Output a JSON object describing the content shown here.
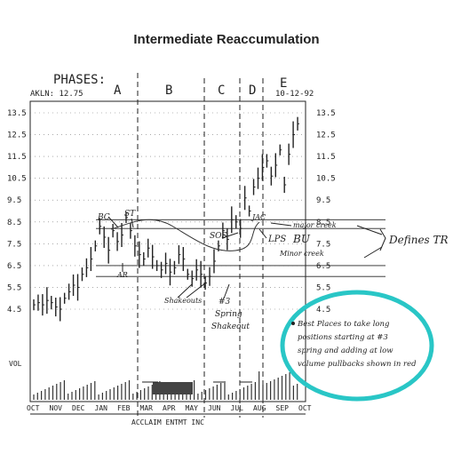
{
  "page_title": "Intermediate Reaccumulation",
  "colors": {
    "ink": "#222222",
    "annotation": "#29c6c6",
    "grid": "#555555"
  },
  "header": {
    "phases_label": "PHASES:",
    "akln": "AKLN: 12.75",
    "date": "10-12-92"
  },
  "phases": [
    "A",
    "B",
    "C",
    "D",
    "E"
  ],
  "ticker_label": "ACCLAIM ENTMT INC",
  "volume_label": "VOL",
  "annotations": {
    "bc": "BC",
    "st": "ST",
    "ar": "AR",
    "sos": "SOS",
    "lps": "LPS",
    "bu": "BU",
    "jac": "JAC",
    "major_creek": "major creek",
    "minor_creek": "Minor creek",
    "shakeouts": "Shakeouts",
    "spring_num": "#3",
    "spring": "Spring",
    "spring_shakeout": "Shakeout",
    "defines_tr": "Defines TR"
  },
  "note_lines": [
    "Best Places to take long",
    "positions starting at #3",
    "spring and adding at low",
    "volume pullbacks shown in red"
  ],
  "chart_data": {
    "type": "line",
    "title": "Intermediate Reaccumulation",
    "ylim": [
      4.0,
      14.0
    ],
    "y_ticks": [
      "13.5",
      "12.5",
      "11.5",
      "10.5",
      "9.5",
      "8.5",
      "7.5",
      "6.5",
      "5.5",
      "4.5"
    ],
    "x_ticks": [
      "OCT",
      "NOV",
      "DEC",
      "JAN",
      "FEB",
      "MAR",
      "APR",
      "MAY",
      "JUN",
      "JUL",
      "AUG",
      "SEP",
      "OCT"
    ],
    "series": [
      {
        "values": [
          4.7,
          4.8,
          4.7,
          4.9,
          4.8,
          4.6,
          4.5,
          5.0,
          5.3,
          5.6,
          5.5,
          6.1,
          6.4,
          6.8,
          7.4,
          8.3,
          7.8,
          7.2,
          8.1,
          7.6,
          7.9,
          8.7,
          8.1,
          7.4,
          7.0,
          6.8,
          7.3,
          6.9,
          6.5,
          6.3,
          6.6,
          6.2,
          6.4,
          7.0,
          6.8,
          6.1,
          5.9,
          6.3,
          6.1,
          5.7,
          6.0,
          6.7,
          7.4,
          8.1,
          7.7,
          8.6,
          8.5,
          8.2,
          9.6,
          9.0,
          10.1,
          10.5,
          11.0,
          11.3,
          10.6,
          11.1,
          11.8,
          10.2,
          11.6,
          12.5,
          13.0
        ]
      }
    ],
    "levels": [
      8.6,
      8.2,
      6.5,
      6.0
    ]
  }
}
